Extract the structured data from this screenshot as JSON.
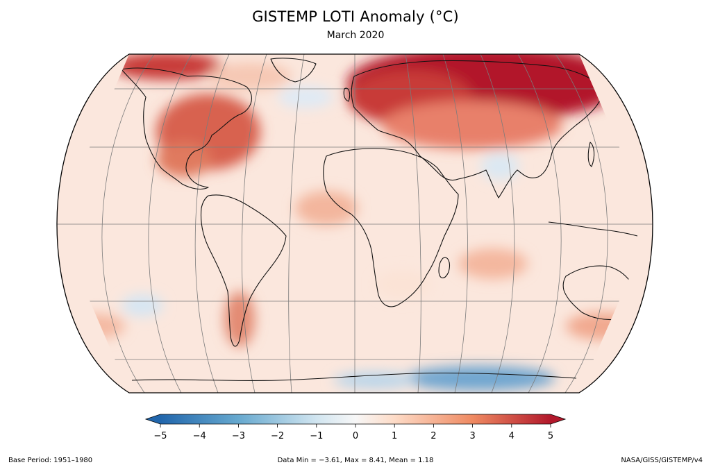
{
  "header": {
    "title": "GISTEMP LOTI Anomaly (°C)",
    "subtitle": "March 2020"
  },
  "colorbar": {
    "ticks": [
      "−5",
      "−4",
      "−3",
      "−2",
      "−1",
      "0",
      "1",
      "2",
      "3",
      "4",
      "5"
    ],
    "range": [
      -5,
      5
    ],
    "extend": "both",
    "colors": {
      "min": "#2166ac",
      "low": "#67a9cf",
      "pale_blue": "#d1e5f0",
      "zero": "#f7f7f7",
      "pale_red": "#fddbc7",
      "high": "#ef8a62",
      "max": "#b2182b"
    }
  },
  "footer": {
    "base_period": "Base Period: 1951–1980",
    "stats": "Data Min = −3.61, Max = 8.41, Mean = 1.18",
    "source": "NASA/GISS/GISTEMP/v4"
  },
  "map": {
    "projection": "Robinson",
    "graticule": "30° spacing"
  }
}
